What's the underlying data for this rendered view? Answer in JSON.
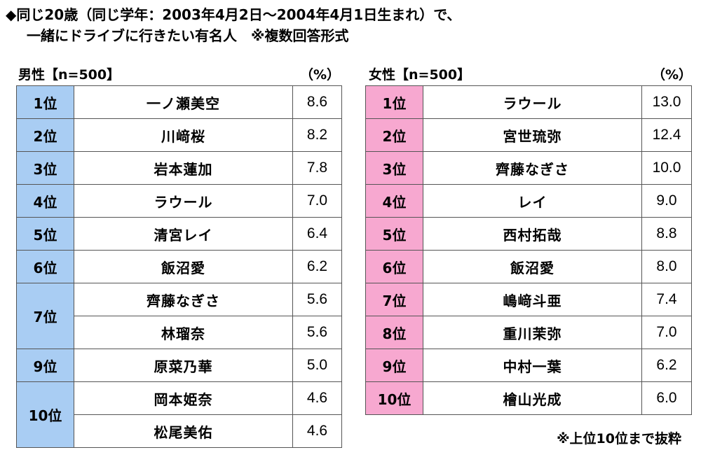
{
  "title": {
    "line1": "◆同じ20歳（同じ学年：2003年4月2日～2004年4月1日生まれ）で、",
    "line2": "一緒にドライブに行きたい有名人　※複数回答形式"
  },
  "chart_data": {
    "type": "table",
    "unit": "（%）",
    "male": {
      "header": "男性【n=500】",
      "unit": "（%）",
      "rows": [
        {
          "rank": "1位",
          "name": "一ノ瀬美空",
          "value": "8.6"
        },
        {
          "rank": "2位",
          "name": "川﨑桜",
          "value": "8.2"
        },
        {
          "rank": "3位",
          "name": "岩本蓮加",
          "value": "7.8"
        },
        {
          "rank": "4位",
          "name": "ラウール",
          "value": "7.0"
        },
        {
          "rank": "5位",
          "name": "清宮レイ",
          "value": "6.4"
        },
        {
          "rank": "6位",
          "name": "飯沼愛",
          "value": "6.2"
        },
        {
          "rank": "7位",
          "name": "齊藤なぎさ",
          "value": "5.6"
        },
        {
          "rank": "7位",
          "name": "林瑠奈",
          "value": "5.6"
        },
        {
          "rank": "9位",
          "name": "原菜乃華",
          "value": "5.0"
        },
        {
          "rank": "10位",
          "name": "岡本姫奈",
          "value": "4.6"
        },
        {
          "rank": "10位",
          "name": "松尾美佑",
          "value": "4.6"
        }
      ]
    },
    "female": {
      "header": "女性【n=500】",
      "unit": "（%）",
      "rows": [
        {
          "rank": "1位",
          "name": "ラウール",
          "value": "13.0"
        },
        {
          "rank": "2位",
          "name": "宮世琉弥",
          "value": "12.4"
        },
        {
          "rank": "3位",
          "name": "齊藤なぎさ",
          "value": "10.0"
        },
        {
          "rank": "4位",
          "name": "レイ",
          "value": "9.0"
        },
        {
          "rank": "5位",
          "name": "西村拓哉",
          "value": "8.8"
        },
        {
          "rank": "6位",
          "name": "飯沼愛",
          "value": "8.0"
        },
        {
          "rank": "7位",
          "name": "嶋﨑斗亜",
          "value": "7.4"
        },
        {
          "rank": "8位",
          "name": "重川茉弥",
          "value": "7.0"
        },
        {
          "rank": "9位",
          "name": "中村一葉",
          "value": "6.2"
        },
        {
          "rank": "10位",
          "name": "檜山光成",
          "value": "6.0"
        }
      ]
    }
  },
  "note": "※上位10位まで抜粋",
  "colors": {
    "male_rank_bg": "#a9cdf3",
    "female_rank_bg": "#f7a8d0",
    "border": "#555555"
  }
}
